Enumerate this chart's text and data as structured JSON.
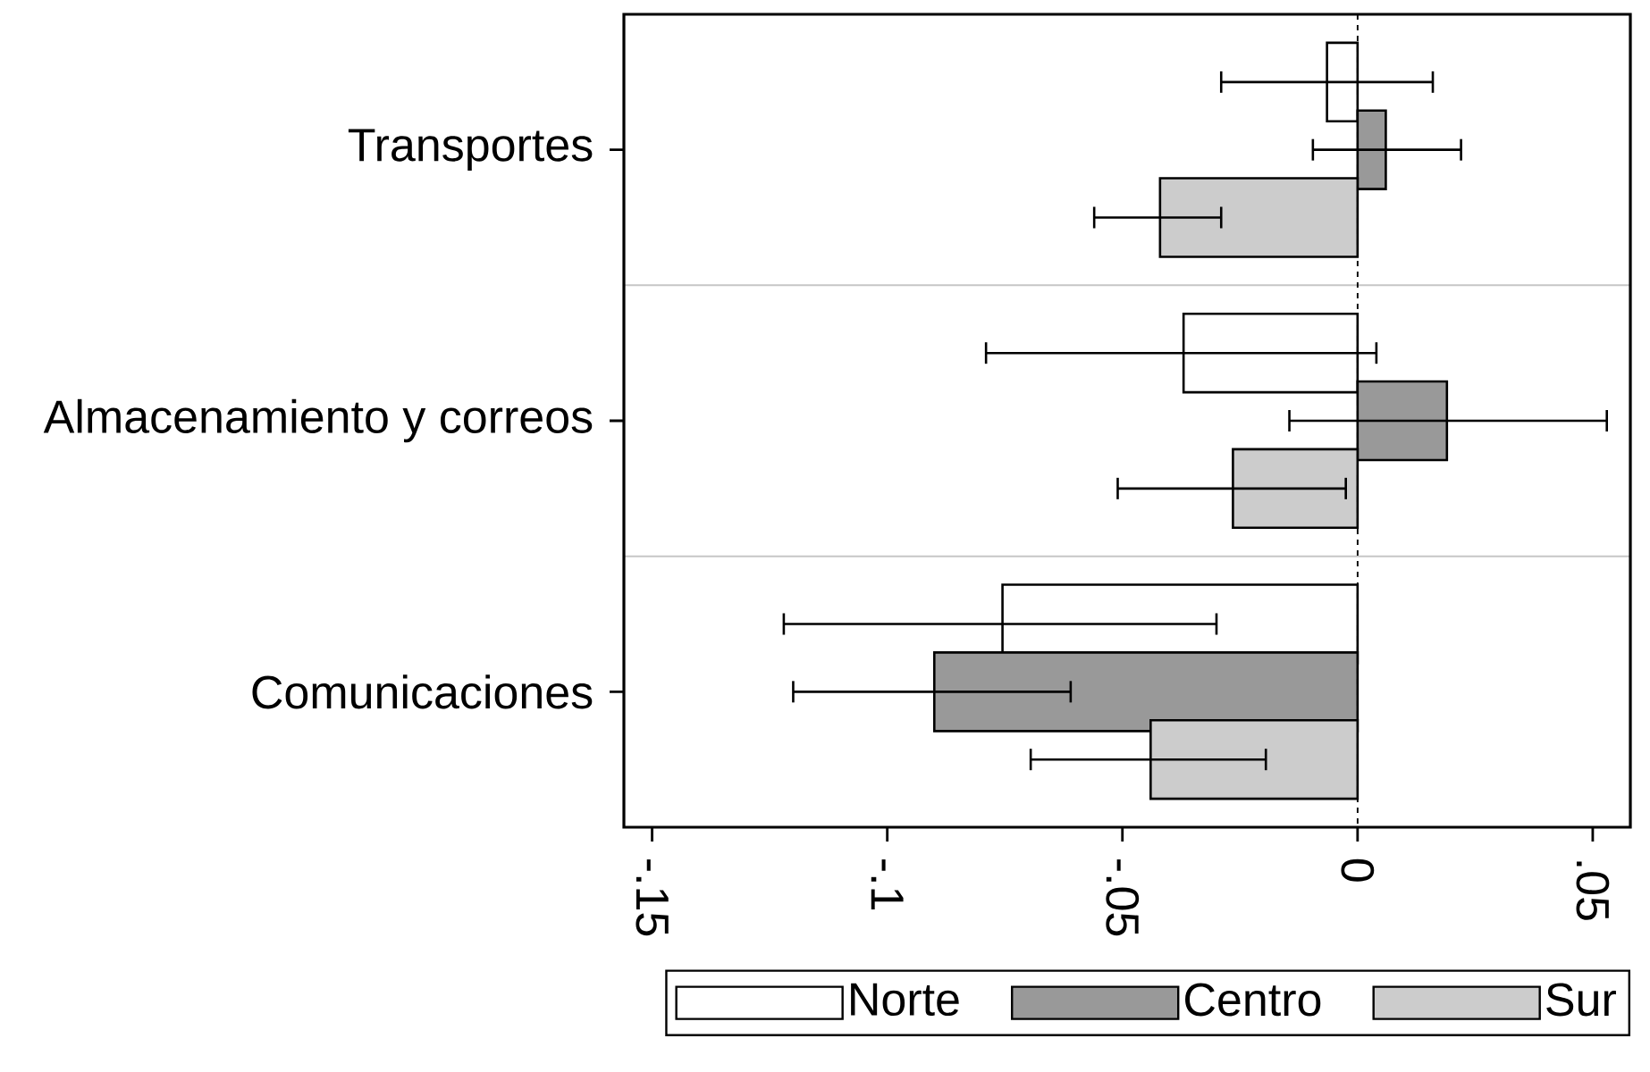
{
  "chart_data": {
    "type": "bar",
    "orientation": "horizontal",
    "categories": [
      "Transportes",
      "Almacenamiento y correos",
      "Comunicaciones"
    ],
    "series": [
      {
        "name": "Norte",
        "color": "#ffffff",
        "values": [
          -0.0065,
          -0.037,
          -0.0755
        ],
        "errors": [
          [
            -0.029,
            0.016
          ],
          [
            -0.079,
            0.004
          ],
          [
            -0.122,
            -0.03
          ]
        ]
      },
      {
        "name": "Centro",
        "color": "#999999",
        "values": [
          0.006,
          0.019,
          -0.09
        ],
        "errors": [
          [
            -0.0095,
            0.022
          ],
          [
            -0.0145,
            0.053
          ],
          [
            -0.12,
            -0.061
          ]
        ]
      },
      {
        "name": "Sur",
        "color": "#cccccc",
        "values": [
          -0.042,
          -0.0265,
          -0.044
        ],
        "errors": [
          [
            -0.056,
            -0.029
          ],
          [
            -0.051,
            -0.0025
          ],
          [
            -0.0695,
            -0.0195
          ]
        ]
      }
    ],
    "xlim": [
      -0.156,
      0.058
    ],
    "xticks": [
      {
        "value": -0.15,
        "label": "-.15"
      },
      {
        "value": -0.1,
        "label": "-.1"
      },
      {
        "value": -0.05,
        "label": "-.05"
      },
      0,
      {
        "value": 0.05,
        "label": ".05"
      }
    ],
    "ref_lines": [
      {
        "axis": "x",
        "value": 0,
        "color": "#000000",
        "line_style": "dashed"
      }
    ],
    "grid": "y",
    "legend": "bottom"
  }
}
